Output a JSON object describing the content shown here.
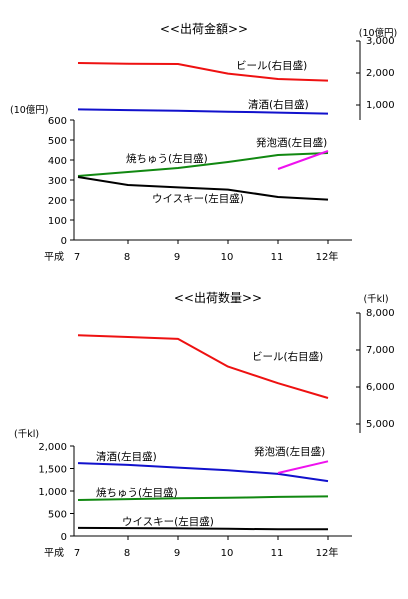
{
  "chart_data": [
    {
      "type": "line",
      "title": "<<出荷金額>>",
      "x_prefix": "平成",
      "x_suffix": "年",
      "x": [
        7,
        8,
        9,
        10,
        11,
        12
      ],
      "x_tick_labels": [
        "7",
        "8",
        "9",
        "10",
        "11",
        "12年"
      ],
      "left_axis": {
        "unit": "(10億円)",
        "ylim": [
          0,
          600
        ],
        "ticks": [
          "0",
          "100",
          "200",
          "300",
          "400",
          "500",
          "600"
        ]
      },
      "right_axis": {
        "unit": "(10億円)",
        "ylim": [
          700,
          3200
        ],
        "ticks": [
          "1,000",
          "2,000",
          "3,000"
        ],
        "tick_values": [
          1000,
          2000,
          3000
        ]
      },
      "series": [
        {
          "name": "ビール(右目盛)",
          "axis": "right",
          "color": "#ee1111",
          "x": [
            7,
            8,
            9,
            10,
            11,
            12
          ],
          "values": [
            2480,
            2460,
            2450,
            2150,
            1980,
            1930
          ]
        },
        {
          "name": "清酒(右目盛)",
          "axis": "right",
          "color": "#1111cc",
          "x": [
            7,
            8,
            9,
            10,
            11,
            12
          ],
          "values": [
            1030,
            1010,
            990,
            960,
            930,
            900
          ]
        },
        {
          "name": "焼ちゅう(左目盛)",
          "axis": "left",
          "color": "#118811",
          "x": [
            7,
            8,
            9,
            10,
            11,
            12
          ],
          "values": [
            320,
            340,
            360,
            390,
            425,
            435
          ]
        },
        {
          "name": "発泡酒(左目盛)",
          "axis": "left",
          "color": "#ee11ee",
          "x": [
            11,
            12
          ],
          "values": [
            355,
            445
          ]
        },
        {
          "name": "ウイスキー(左目盛)",
          "axis": "left",
          "color": "#000000",
          "x": [
            7,
            8,
            9,
            10,
            11,
            12
          ],
          "values": [
            315,
            275,
            263,
            252,
            215,
            202
          ]
        }
      ]
    },
    {
      "type": "line",
      "title": "<<出荷数量>>",
      "x_prefix": "平成",
      "x_suffix": "年",
      "x": [
        7,
        8,
        9,
        10,
        11,
        12
      ],
      "x_tick_labels": [
        "7",
        "8",
        "9",
        "10",
        "11",
        "12年"
      ],
      "left_axis": {
        "unit": "(千kl)",
        "ylim": [
          0,
          2000
        ],
        "ticks": [
          "0",
          "500",
          "1,000",
          "1,500",
          "2,000"
        ]
      },
      "right_axis": {
        "unit": "(千kl)",
        "ylim": [
          4700,
          8000
        ],
        "ticks": [
          "5,000",
          "6,000",
          "7,000",
          "8,000"
        ],
        "tick_values": [
          5000,
          6000,
          7000,
          8000
        ]
      },
      "series": [
        {
          "name": "ビール(右目盛)",
          "axis": "right",
          "color": "#ee1111",
          "x": [
            7,
            8,
            9,
            10,
            11,
            12
          ],
          "values": [
            7400,
            7350,
            7300,
            6550,
            6100,
            5700
          ]
        },
        {
          "name": "清酒(左目盛)",
          "axis": "left",
          "color": "#1111cc",
          "x": [
            7,
            8,
            9,
            10,
            11,
            12
          ],
          "values": [
            1620,
            1580,
            1520,
            1460,
            1380,
            1220
          ]
        },
        {
          "name": "発泡酒(左目盛)",
          "axis": "left",
          "color": "#ee11ee",
          "x": [
            11,
            12
          ],
          "values": [
            1400,
            1660
          ]
        },
        {
          "name": "焼ちゅう(左目盛)",
          "axis": "left",
          "color": "#118811",
          "x": [
            7,
            8,
            9,
            10,
            11,
            12
          ],
          "values": [
            800,
            820,
            840,
            850,
            870,
            880
          ]
        },
        {
          "name": "ウイスキー(左目盛)",
          "axis": "left",
          "color": "#000000",
          "x": [
            7,
            8,
            9,
            10,
            11,
            12
          ],
          "values": [
            180,
            175,
            170,
            160,
            150,
            150
          ]
        }
      ]
    }
  ]
}
